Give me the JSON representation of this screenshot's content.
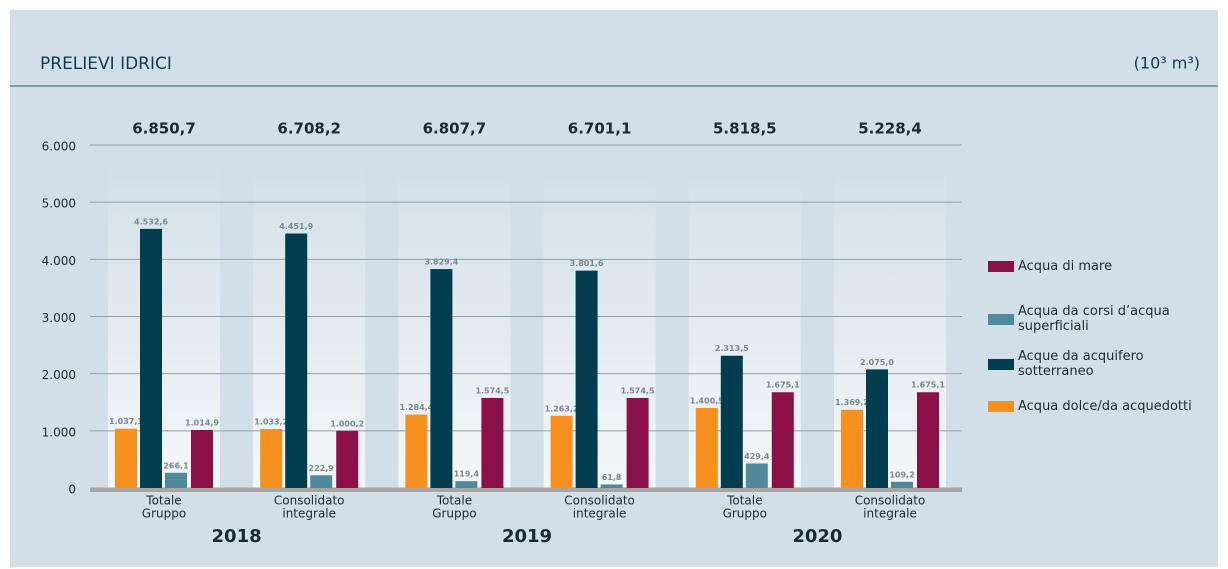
{
  "chart_data": {
    "type": "bar",
    "title": "PRELIEVI IDRICI",
    "unit": "(10³ m³)",
    "categories": [
      [
        "Totale",
        "Gruppo"
      ],
      [
        "Consolidato",
        "integrale"
      ],
      [
        "Totale",
        "Gruppo"
      ],
      [
        "Consolidato",
        "integrale"
      ],
      [
        "Totale",
        "Gruppo"
      ],
      [
        "Consolidato",
        "integrale"
      ]
    ],
    "years": [
      "2018",
      "2019",
      "2020"
    ],
    "totals": {
      "values": [
        6850.7,
        6708.2,
        6807.7,
        6701.1,
        5818.5,
        5228.4
      ],
      "value_labels": [
        "6.850,7",
        "6.708,2",
        "6.807,7",
        "6.701,1",
        "5.818,5",
        "5.228,4"
      ]
    },
    "series": [
      {
        "name": "Acqua dolce/da acquedotti",
        "color": "#f7901e",
        "values": [
          1037.1,
          1033.2,
          1284.4,
          1263.2,
          1400.5,
          1369.2
        ],
        "value_labels": [
          "1.037,1",
          "1.033,2",
          "1.284,4",
          "1.263,2",
          "1.400,5",
          "1.369,2"
        ]
      },
      {
        "name": "Acque da acquifero sotterraneo",
        "color": "#003d4f",
        "values": [
          4532.6,
          4451.9,
          3829.4,
          3801.6,
          2313.5,
          2075.0
        ],
        "value_labels": [
          "4.532,6",
          "4.451,9",
          "3.829,4",
          "3.801,6",
          "2.313,5",
          "2.075,0"
        ]
      },
      {
        "name": "Acqua da corsi d’acqua superficiali",
        "color": "#4f8a9a",
        "values": [
          266.1,
          222.9,
          119.4,
          61.8,
          429.4,
          109.2
        ],
        "value_labels": [
          "266,1",
          "222,9",
          "119,4",
          "61,8",
          "429,4",
          "109,2"
        ]
      },
      {
        "name": "Acqua di mare",
        "color": "#8c1048",
        "values": [
          1014.9,
          1000.2,
          1574.5,
          1574.5,
          1675.1,
          1675.1
        ],
        "value_labels": [
          "1.014,9",
          "1.000,2",
          "1.574,5",
          "1.574,5",
          "1.675,1",
          "1.675,1"
        ]
      }
    ],
    "legend_order": [
      3,
      2,
      1,
      0
    ],
    "ylim": [
      0,
      6000
    ],
    "yticks": [
      0,
      {
        "value": 1000,
        "label": "1.000"
      },
      {
        "value": 2000,
        "label": "2.000"
      },
      {
        "value": 3000,
        "label": "3.000"
      },
      {
        "value": 4000,
        "label": "4.000"
      },
      {
        "value": 5000,
        "label": "5.000"
      },
      {
        "value": 6000,
        "label": "6.000"
      }
    ],
    "grid": true
  }
}
